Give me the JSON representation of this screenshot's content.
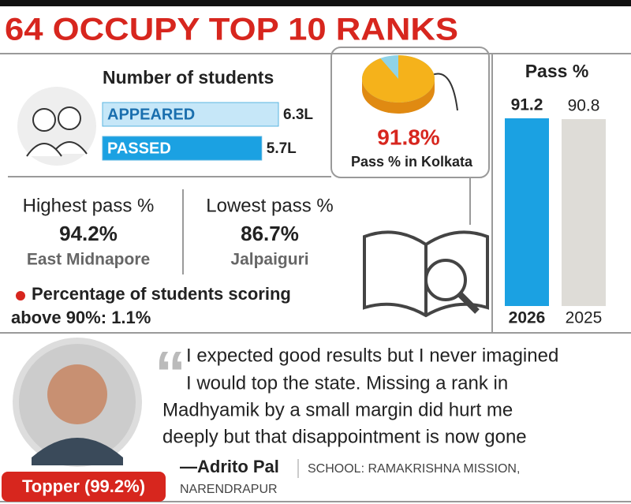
{
  "header": {
    "title": "64 OCCUPY TOP 10 RANKS"
  },
  "chart_data": [
    {
      "type": "hbar",
      "title": "Number of students",
      "categories": [
        "APPEARED",
        "PASSED"
      ],
      "values": [
        6.3,
        5.7
      ],
      "value_labels": [
        "6.3L",
        "5.7L"
      ],
      "colors": [
        "#c6e7f8",
        "#1ba1e2"
      ]
    },
    {
      "type": "pie",
      "values": [
        91.8
      ],
      "value_labels": [
        "91.8%"
      ],
      "label": "Pass % in Kolkata",
      "color": "#f5b21b"
    },
    {
      "type": "bar",
      "title": "Pass %",
      "categories": [
        "2026",
        "2025"
      ],
      "values": [
        91.2,
        90.8
      ],
      "colors": [
        "#1ba1e2",
        "#dedcd7"
      ]
    }
  ],
  "stats": {
    "highest": {
      "label": "Highest pass %",
      "value": "94.2%",
      "district": "East Midnapore"
    },
    "lowest": {
      "label": "Lowest pass %",
      "value": "86.7%",
      "district": "Jalpaiguri"
    },
    "above90": {
      "label": "Percentage of students scoring above 90%:",
      "value": "1.1%"
    }
  },
  "topper": {
    "badge": "Topper (99.2%)",
    "quote": [
      "I expected good results but I never imagined",
      "I would top the state. Missing a rank in",
      "Madhyamik by a small margin did hurt me",
      "deeply but that disappointment is now gone"
    ],
    "author": "—Adrito Pal",
    "school": [
      "SCHOOL: RAMAKRISHNA MISSION,",
      "NARENDRAPUR"
    ]
  }
}
